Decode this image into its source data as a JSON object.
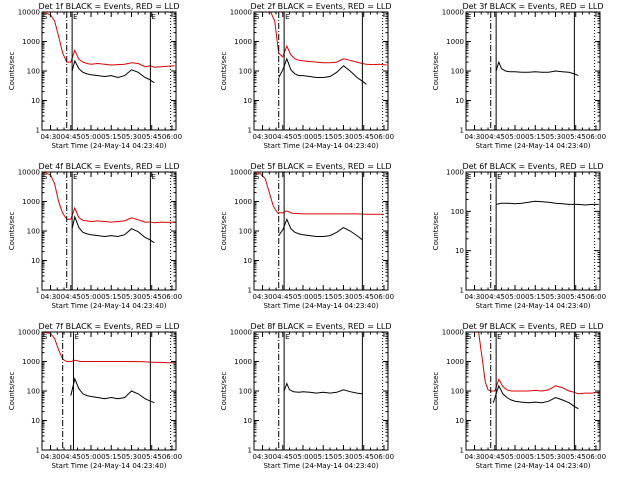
{
  "figure": {
    "x_tick_labels": [
      "04:30",
      "04:45",
      "05:00",
      "05:15",
      "05:30",
      "05:45",
      "06:00"
    ],
    "y_tick_labels": [
      "1",
      "10",
      "100",
      "1000",
      "10000"
    ],
    "xlabel": "Start Time (24-May-14 04:23:40)",
    "ylabel": "Counts/sec",
    "colors": {
      "events": "#000000",
      "lld": "#dd0000",
      "axes": "#000000"
    }
  },
  "chart_data": [
    {
      "title": "Det 1f BLACK = Events, RED = LLD",
      "type": "line",
      "yscale": "log",
      "ylim": [
        1,
        10000
      ],
      "xlim": [
        "04:23:40",
        "06:03:00"
      ],
      "markers": [
        "S",
        "E",
        "E"
      ],
      "vlines": {
        "dashdot": "04:42",
        "solid": "04:46",
        "region_end": "05:44",
        "dotted": "05:59"
      },
      "series": [
        {
          "name": "RED = LLD",
          "x": [
            "04:24",
            "04:27",
            "04:30",
            "04:33",
            "04:36",
            "04:39",
            "04:42",
            "04:45",
            "04:48",
            "04:51",
            "04:54",
            "04:57",
            "05:00",
            "05:05",
            "05:10",
            "05:15",
            "05:20",
            "05:25",
            "05:30",
            "05:35",
            "05:40",
            "05:44",
            "05:47",
            "05:52",
            "05:57",
            "06:02"
          ],
          "values": [
            9000,
            9000,
            8000,
            5000,
            1500,
            400,
            200,
            200,
            500,
            250,
            200,
            180,
            170,
            180,
            170,
            160,
            165,
            170,
            190,
            180,
            140,
            150,
            135,
            140,
            145,
            150
          ]
        },
        {
          "name": "BLACK = Events",
          "x": [
            "04:46",
            "04:48",
            "04:51",
            "04:54",
            "04:57",
            "05:00",
            "05:05",
            "05:10",
            "05:15",
            "05:20",
            "05:25",
            "05:30",
            "05:35",
            "05:40",
            "05:44",
            "05:45",
            "05:47"
          ],
          "values": [
            100,
            220,
            120,
            90,
            80,
            75,
            70,
            65,
            70,
            60,
            70,
            110,
            90,
            60,
            50,
            45,
            40
          ]
        }
      ]
    },
    {
      "title": "Det 2f BLACK = Events, RED = LLD",
      "type": "line",
      "yscale": "log",
      "ylim": [
        1,
        10000
      ],
      "xlim": [
        "04:23:40",
        "06:03:00"
      ],
      "markers": [
        "S",
        "E"
      ],
      "vlines": {
        "dashdot": "04:42",
        "solid": "04:46",
        "region_end": "05:44",
        "dotted": "05:59"
      },
      "series": [
        {
          "name": "RED = LLD",
          "x": [
            "04:36",
            "04:39",
            "04:42",
            "04:45",
            "04:48",
            "04:51",
            "04:54",
            "04:57",
            "05:00",
            "05:05",
            "05:10",
            "05:15",
            "05:20",
            "05:25",
            "05:30",
            "05:35",
            "05:40",
            "05:44",
            "05:47",
            "05:52",
            "05:57",
            "06:02"
          ],
          "values": [
            10000,
            5000,
            400,
            300,
            700,
            350,
            260,
            230,
            220,
            210,
            200,
            190,
            190,
            200,
            260,
            230,
            200,
            180,
            170,
            165,
            170,
            160
          ]
        },
        {
          "name": "BLACK = Events",
          "x": [
            "04:42",
            "04:45",
            "04:48",
            "04:51",
            "04:54",
            "04:57",
            "05:00",
            "05:05",
            "05:10",
            "05:15",
            "05:20",
            "05:25",
            "05:30",
            "05:35",
            "05:40",
            "05:44",
            "05:47"
          ],
          "values": [
            60,
            110,
            260,
            110,
            80,
            70,
            70,
            65,
            60,
            60,
            65,
            90,
            150,
            100,
            60,
            45,
            35
          ]
        }
      ]
    },
    {
      "title": "Det 3f BLACK = Events, RED = LLD",
      "type": "line",
      "yscale": "log",
      "ylim": [
        1,
        10000
      ],
      "xlim": [
        "04:23:40",
        "06:03:00"
      ],
      "markers": [
        "E"
      ],
      "vlines": {
        "dashdot": "04:42",
        "solid": "04:46",
        "region_end": "05:44",
        "dotted": "05:59"
      },
      "series": [
        {
          "name": "BLACK = Events",
          "x": [
            "04:46",
            "04:48",
            "04:50",
            "04:53",
            "04:56",
            "05:00",
            "05:05",
            "05:10",
            "05:15",
            "05:20",
            "05:25",
            "05:30",
            "05:35",
            "05:40",
            "05:44",
            "05:47"
          ],
          "values": [
            100,
            200,
            120,
            100,
            95,
            95,
            90,
            90,
            95,
            90,
            90,
            100,
            95,
            90,
            80,
            70
          ]
        }
      ]
    },
    {
      "title": "Det 4f BLACK = Events, RED = LLD",
      "type": "line",
      "yscale": "log",
      "ylim": [
        1,
        10000
      ],
      "xlim": [
        "04:23:40",
        "06:03:00"
      ],
      "markers": [
        "S",
        "E",
        "E"
      ],
      "vlines": {
        "dashdot": "04:42",
        "solid": "04:46",
        "region_end": "05:44",
        "dotted": "05:59"
      },
      "series": [
        {
          "name": "RED = LLD",
          "x": [
            "04:24",
            "04:27",
            "04:30",
            "04:33",
            "04:36",
            "04:39",
            "04:42",
            "04:45",
            "04:48",
            "04:51",
            "04:54",
            "04:57",
            "05:00",
            "05:05",
            "05:10",
            "05:15",
            "05:20",
            "05:25",
            "05:30",
            "05:35",
            "05:40",
            "05:44",
            "05:47",
            "05:52",
            "05:57",
            "06:02"
          ],
          "values": [
            10000,
            9000,
            8000,
            4000,
            1000,
            400,
            250,
            250,
            600,
            280,
            230,
            220,
            210,
            220,
            210,
            200,
            210,
            220,
            280,
            240,
            200,
            200,
            190,
            200,
            195,
            200
          ]
        },
        {
          "name": "BLACK = Events",
          "x": [
            "04:46",
            "04:48",
            "04:51",
            "04:54",
            "04:57",
            "05:00",
            "05:05",
            "05:10",
            "05:15",
            "05:20",
            "05:25",
            "05:30",
            "05:35",
            "05:40",
            "05:44",
            "05:45",
            "05:47"
          ],
          "values": [
            120,
            300,
            130,
            90,
            80,
            75,
            70,
            65,
            70,
            65,
            75,
            120,
            95,
            60,
            50,
            45,
            40
          ]
        }
      ]
    },
    {
      "title": "Det 5f BLACK = Events, RED = LLD",
      "type": "line",
      "yscale": "log",
      "ylim": [
        1,
        10000
      ],
      "xlim": [
        "04:23:40",
        "06:03:00"
      ],
      "markers": [
        "S"
      ],
      "vlines": {
        "dashdot": "04:42",
        "solid": "04:46",
        "region_end": "05:44",
        "dotted": "05:59"
      },
      "series": [
        {
          "name": "RED = LLD",
          "x": [
            "04:24",
            "04:28",
            "04:32",
            "04:35",
            "04:38",
            "04:41",
            "04:45",
            "04:48",
            "04:52",
            "05:00",
            "05:10",
            "05:20",
            "05:30",
            "05:40",
            "05:44",
            "05:47",
            "05:52",
            "05:57",
            "06:00"
          ],
          "values": [
            9000,
            9000,
            6000,
            2000,
            700,
            420,
            410,
            480,
            400,
            380,
            380,
            380,
            380,
            380,
            375,
            370,
            370,
            370,
            370
          ]
        },
        {
          "name": "BLACK = Events",
          "x": [
            "04:42",
            "04:45",
            "04:48",
            "04:51",
            "04:54",
            "04:57",
            "05:00",
            "05:05",
            "05:10",
            "05:15",
            "05:20",
            "05:25",
            "05:30",
            "05:35",
            "05:40",
            "05:44"
          ],
          "values": [
            70,
            110,
            250,
            120,
            90,
            80,
            75,
            70,
            65,
            65,
            70,
            90,
            130,
            100,
            70,
            50
          ]
        }
      ]
    },
    {
      "title": "Det 6f BLACK = Events, RED = LLD",
      "type": "line",
      "yscale": "log",
      "ylim": [
        1,
        1000
      ],
      "xlim": [
        "04:23:40",
        "06:03:00"
      ],
      "markers": [
        "E",
        "E"
      ],
      "vlines": {
        "dashdot": "04:42",
        "solid": "04:46",
        "region_end": "05:44",
        "dotted": "05:59"
      },
      "series": [
        {
          "name": "BLACK = Events",
          "x": [
            "04:46",
            "04:50",
            "04:55",
            "05:00",
            "05:05",
            "05:10",
            "05:15",
            "05:20",
            "05:25",
            "05:30",
            "05:35",
            "05:40",
            "05:44",
            "05:47",
            "05:52",
            "05:57",
            "06:02"
          ],
          "values": [
            150,
            160,
            160,
            155,
            160,
            170,
            180,
            175,
            170,
            160,
            155,
            150,
            150,
            150,
            145,
            150,
            150
          ]
        }
      ]
    },
    {
      "title": "Det 7f BLACK = Events, RED = LLD",
      "type": "line",
      "yscale": "log",
      "ylim": [
        1,
        10000
      ],
      "xlim": [
        "04:23:40",
        "06:03:00"
      ],
      "markers": [
        "S",
        "E"
      ],
      "vlines": {
        "dashdot": "04:39",
        "solid": "04:47",
        "region_end": "05:44",
        "dotted": "05:59"
      },
      "series": [
        {
          "name": "RED = LLD",
          "x": [
            "04:24",
            "04:27",
            "04:30",
            "04:33",
            "04:36",
            "04:39",
            "04:42",
            "04:45",
            "04:48",
            "04:52",
            "05:00",
            "05:10",
            "05:20",
            "05:30",
            "05:40",
            "05:44",
            "05:47",
            "05:52",
            "05:57",
            "06:02"
          ],
          "values": [
            10000,
            9500,
            9000,
            6000,
            2500,
            1200,
            1000,
            1000,
            1100,
            1000,
            1000,
            1000,
            1000,
            1000,
            980,
            950,
            950,
            930,
            900,
            900
          ]
        },
        {
          "name": "BLACK = Events",
          "x": [
            "04:45",
            "04:48",
            "04:51",
            "04:54",
            "04:57",
            "05:00",
            "05:05",
            "05:10",
            "05:15",
            "05:20",
            "05:25",
            "05:30",
            "05:35",
            "05:40",
            "05:44",
            "05:47"
          ],
          "values": [
            70,
            260,
            120,
            80,
            70,
            65,
            60,
            55,
            60,
            55,
            60,
            100,
            80,
            55,
            45,
            40
          ]
        }
      ]
    },
    {
      "title": "Det 8f BLACK = Events, RED = LLD",
      "type": "line",
      "yscale": "log",
      "ylim": [
        1,
        10000
      ],
      "xlim": [
        "04:23:40",
        "06:03:00"
      ],
      "markers": [
        "S",
        "E"
      ],
      "vlines": {
        "dashdot": "04:42",
        "solid": "04:46",
        "region_end": "05:44",
        "dotted": "05:59"
      },
      "series": [
        {
          "name": "RED = LLD",
          "x": [
            "04:24",
            "04:30",
            "04:40",
            "04:46",
            "04:50",
            "05:00",
            "05:20",
            "05:40",
            "05:44",
            "05:50",
            "06:02"
          ],
          "values": [
            10000,
            10000,
            10000,
            10000,
            10000,
            10000,
            10000,
            10000,
            10000,
            10000,
            10000
          ]
        },
        {
          "name": "BLACK = Events",
          "x": [
            "04:46",
            "04:48",
            "04:50",
            "04:53",
            "04:57",
            "05:00",
            "05:05",
            "05:10",
            "05:15",
            "05:20",
            "05:25",
            "05:30",
            "05:35",
            "05:40",
            "05:44"
          ],
          "values": [
            100,
            180,
            110,
            95,
            90,
            95,
            90,
            85,
            90,
            85,
            90,
            110,
            95,
            85,
            80
          ]
        }
      ]
    },
    {
      "title": "Det 9f BLACK = Events, RED = LLD",
      "type": "line",
      "yscale": "log",
      "ylim": [
        1,
        10000
      ],
      "xlim": [
        "04:23:40",
        "06:03:00"
      ],
      "markers": [
        "S",
        "E",
        "E"
      ],
      "vlines": {
        "dashdot": "04:42",
        "solid": "04:46",
        "region_end": "05:44",
        "dotted": "05:59"
      },
      "series": [
        {
          "name": "RED = LLD",
          "x": [
            "04:33",
            "04:36",
            "04:38",
            "04:40",
            "04:42",
            "04:45",
            "04:48",
            "04:51",
            "04:54",
            "04:57",
            "05:00",
            "05:05",
            "05:10",
            "05:15",
            "05:20",
            "05:25",
            "05:30",
            "05:35",
            "05:40",
            "05:44",
            "05:47",
            "05:52",
            "05:57",
            "06:02"
          ],
          "values": [
            10000,
            1000,
            200,
            110,
            100,
            100,
            250,
            140,
            110,
            100,
            100,
            100,
            100,
            105,
            100,
            110,
            150,
            130,
            100,
            90,
            80,
            85,
            85,
            90
          ]
        },
        {
          "name": "BLACK = Events",
          "x": [
            "04:44",
            "04:46",
            "04:48",
            "04:51",
            "04:54",
            "04:57",
            "05:00",
            "05:05",
            "05:10",
            "05:15",
            "05:20",
            "05:25",
            "05:30",
            "05:35",
            "05:40",
            "05:44",
            "05:47"
          ],
          "values": [
            40,
            80,
            150,
            80,
            60,
            50,
            45,
            42,
            40,
            42,
            40,
            45,
            60,
            50,
            40,
            30,
            25
          ]
        }
      ]
    }
  ]
}
